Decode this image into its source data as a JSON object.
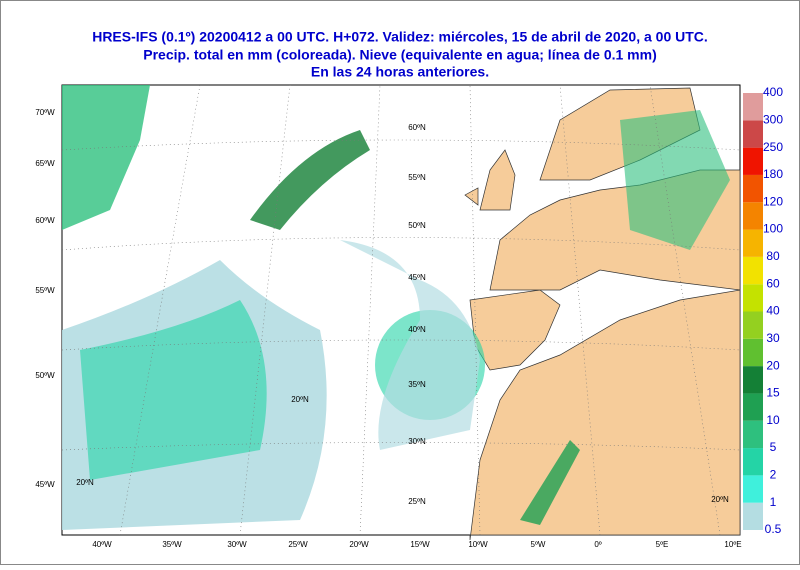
{
  "header": {
    "lines": [
      "HRES-IFS (0.1º) 20200412 a 00 UTC.  H+072. Validez: miércoles, 15 de abril de 2020,  a  00 UTC.",
      "Precip. total en mm (coloreada). Nieve (equivalente en agua; línea de 0.1 mm)",
      "En las 24 horas anteriores."
    ]
  },
  "map": {
    "bottom_labels": [
      "40ºW",
      "35ºW",
      "30ºW",
      "25ºW",
      "20ºW",
      "15ºW",
      "10ºW",
      "5ºW",
      "0º",
      "5ºE",
      "10ºE"
    ],
    "left_labels": [
      "70ºW",
      "65ºW",
      "60ºW",
      "55ºW",
      "50ºW",
      "45ºW"
    ],
    "lat_labels": [
      "60ºN",
      "55ºN",
      "50ºN",
      "45ºN",
      "40ºN",
      "35ºN",
      "30ºN",
      "25ºN",
      "20ºN",
      "20ºN",
      "20ºN"
    ]
  },
  "legend": {
    "levels": [
      0.5,
      1,
      2,
      5,
      10,
      15,
      20,
      30,
      40,
      60,
      80,
      100,
      120,
      180,
      250,
      300,
      400
    ],
    "colors": [
      "#b4dde2",
      "#3ff0dc",
      "#24d4a6",
      "#2ec07e",
      "#1fa052",
      "#148036",
      "#60c030",
      "#94d020",
      "#c4e200",
      "#f2e200",
      "#f6b400",
      "#f48400",
      "#f25400",
      "#f01400",
      "#cc4848",
      "#e09c9c"
    ]
  }
}
